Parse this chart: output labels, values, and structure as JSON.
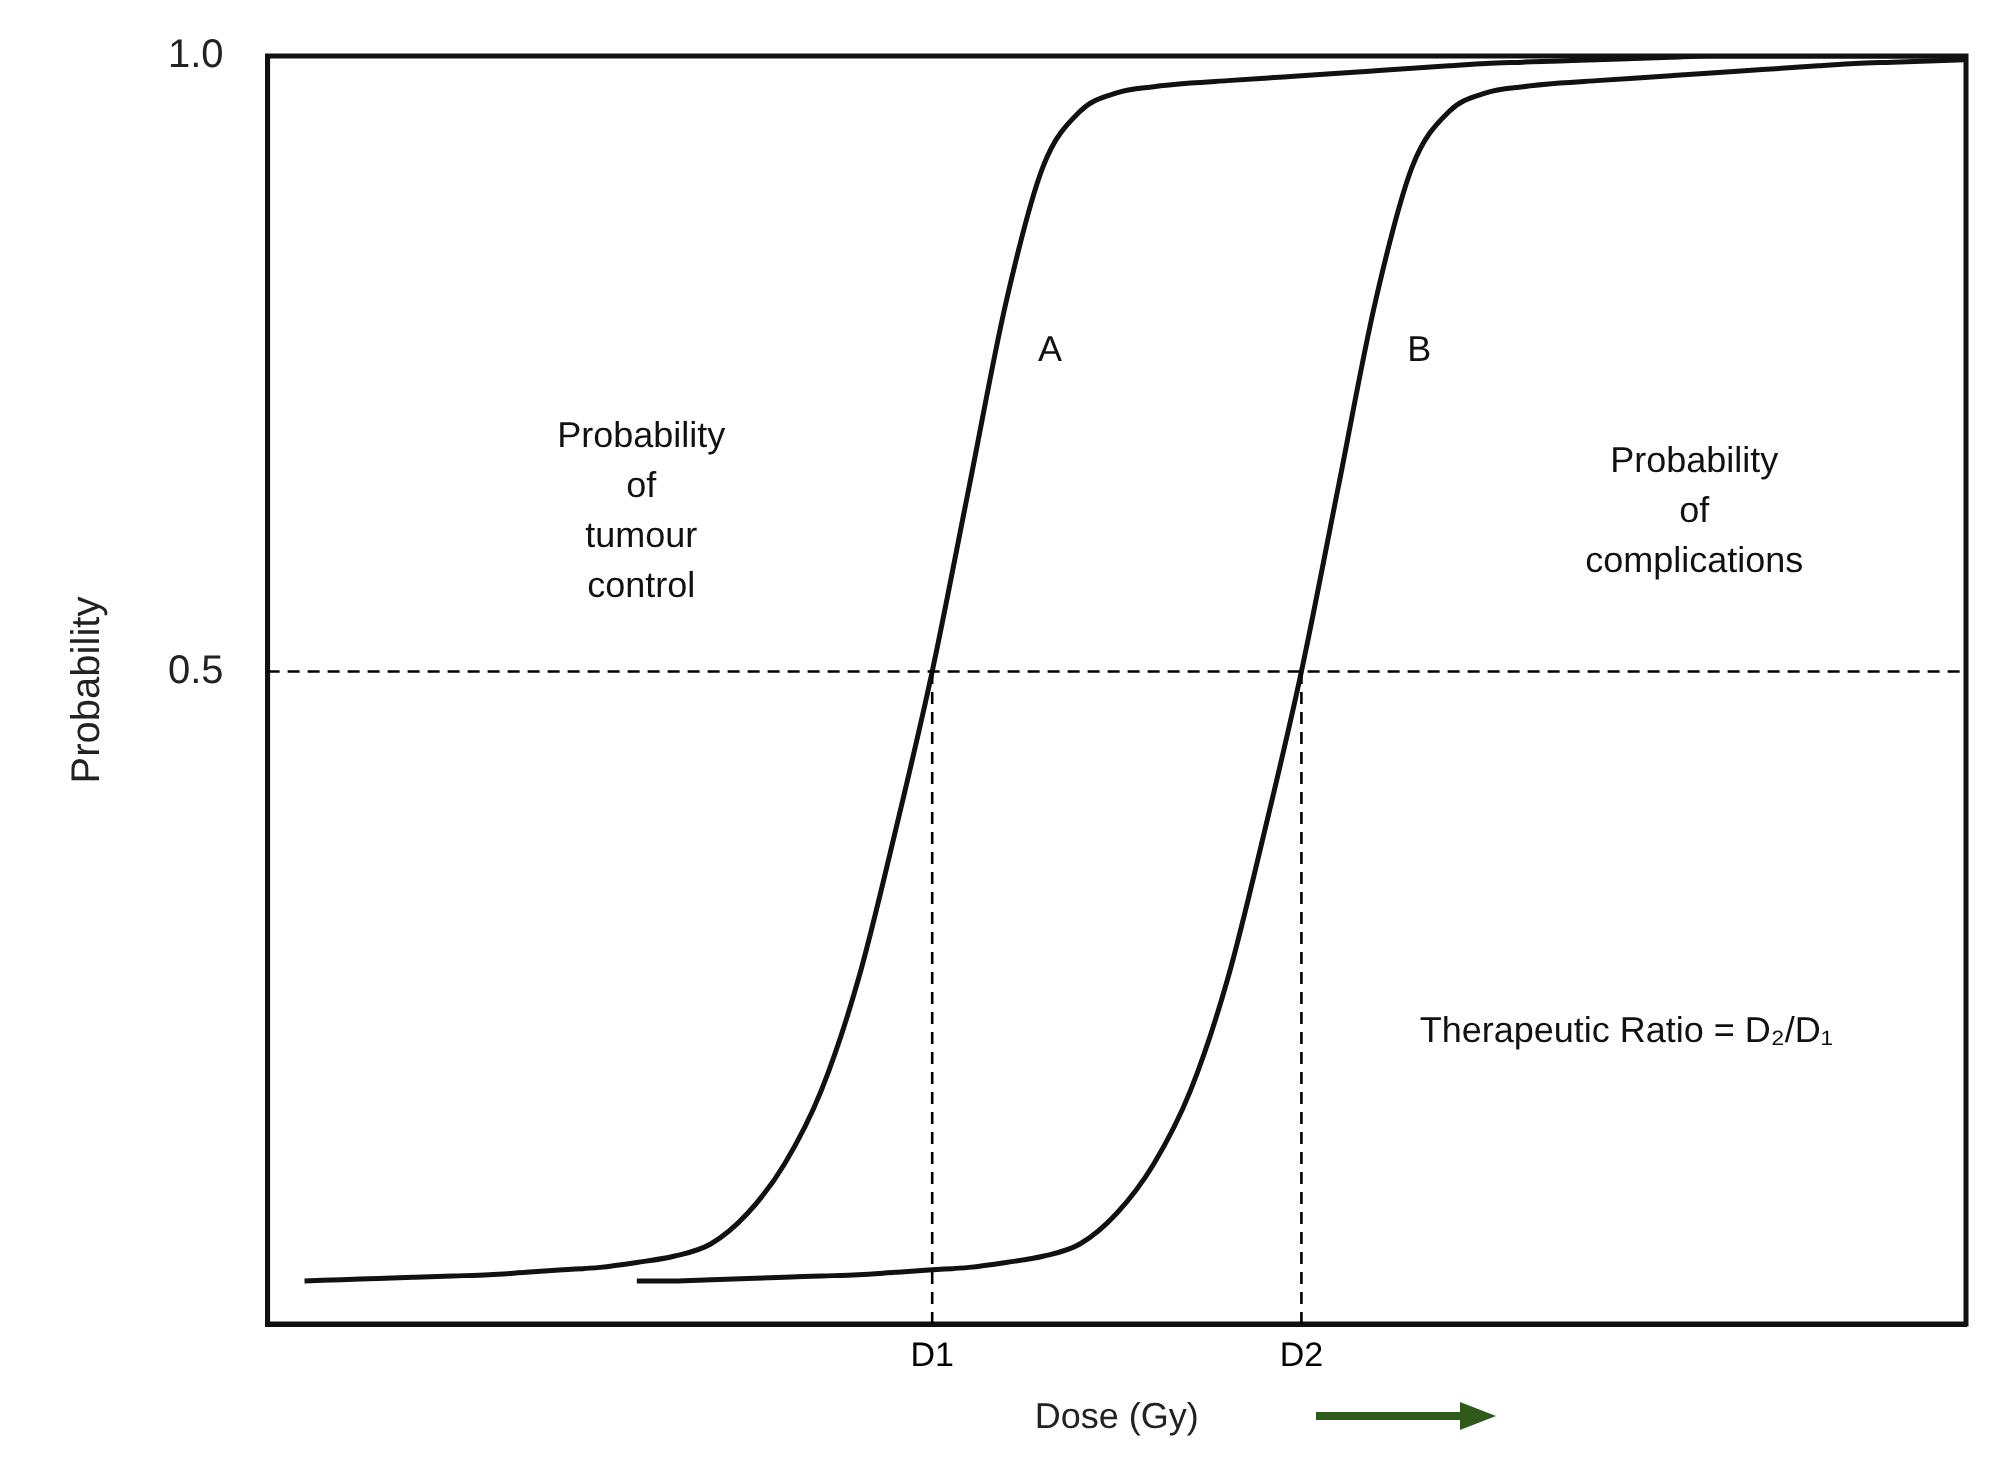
{
  "chart_data": {
    "type": "line",
    "xlabel": "Dose (Gy)",
    "ylabel": "Probability",
    "categories": [
      null,
      null,
      null,
      null,
      null,
      null,
      null,
      null,
      null,
      null,
      null,
      null,
      null,
      null,
      null,
      null,
      null,
      null,
      "D1",
      null,
      null,
      null,
      null,
      null,
      null,
      null,
      null,
      null,
      "D2",
      null,
      null,
      null,
      null,
      null,
      null,
      null,
      null,
      null,
      null,
      null,
      null,
      null,
      null,
      null,
      null,
      null,
      null
    ],
    "series": [
      {
        "name": "A",
        "color": "#111111",
        "values": [
          null,
          0.005,
          0.006,
          0.007,
          0.008,
          0.009,
          0.01,
          0.012,
          0.014,
          0.016,
          0.02,
          0.025,
          0.035,
          0.06,
          0.1,
          0.16,
          0.25,
          0.37,
          0.5,
          0.65,
          0.8,
          0.91,
          0.955,
          0.97,
          0.975,
          0.978,
          0.98,
          0.982,
          0.984,
          0.986,
          0.988,
          0.99,
          0.992,
          0.994,
          0.995,
          0.996,
          0.997,
          0.998,
          0.999,
          1,
          1,
          1,
          1,
          1,
          1,
          1,
          1
        ]
      },
      {
        "name": "B",
        "color": "#111111",
        "values": [
          null,
          null,
          null,
          null,
          null,
          null,
          null,
          null,
          null,
          null,
          0.005,
          0.005,
          0.006,
          0.007,
          0.008,
          0.009,
          0.01,
          0.012,
          0.014,
          0.016,
          0.02,
          0.025,
          0.035,
          0.06,
          0.1,
          0.16,
          0.25,
          0.37,
          0.5,
          0.65,
          0.8,
          0.91,
          0.955,
          0.97,
          0.975,
          0.978,
          0.98,
          0.982,
          0.984,
          0.986,
          0.988,
          0.99,
          0.992,
          0.994,
          0.995,
          0.996,
          0.997
        ]
      }
    ],
    "ylim": [
      -0.03,
      1.0
    ],
    "yticks": [
      {
        "value": 0.5,
        "label": "0.5"
      },
      {
        "value": 1,
        "label": "1.0"
      }
    ],
    "ref_lines": [
      {
        "axis": "y",
        "value": 0.5,
        "line_style": "dashed"
      },
      {
        "axis": "x",
        "value": "D1",
        "line_style": "dashed"
      },
      {
        "axis": "x",
        "value": "D2",
        "line_style": "dashed"
      }
    ],
    "annotations": [
      "Probability\nof\ntumour\ncontrol",
      "Probability\nof\ncomplications",
      "Therapeutic Ratio = D₂/D₁"
    ],
    "marker": "none",
    "line_style": "solid",
    "grid": false,
    "legend": false
  }
}
